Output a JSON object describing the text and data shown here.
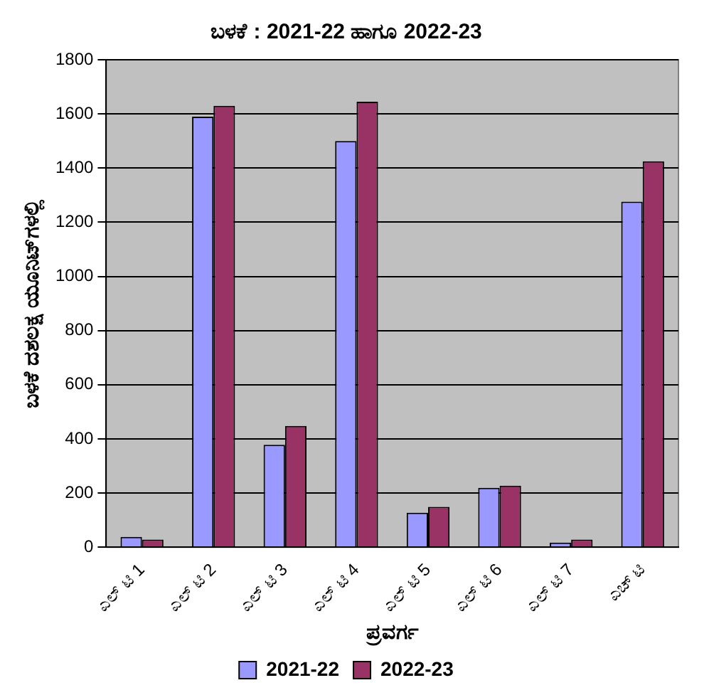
{
  "chart_data": {
    "type": "bar",
    "title": "ಬಳಕೆ : 2021-22 ಹಾಗೂ 2022-23",
    "xlabel": "ಪ್ರವರ್ಗ",
    "ylabel": "ಬಳಕೆ ದಶಲಕ್ಷ ಯೂನಿಟ್‌ಗಳಲ್ಲಿ",
    "categories": [
      "ಎಲ್ ಟಿ 1",
      "ಎಲ್ ಟಿ 2",
      "ಎಲ್ ಟಿ 3",
      "ಎಲ್ ಟಿ 4",
      "ಎಲ್ ಟಿ 5",
      "ಎಲ್ ಟಿ 6",
      "ಎಲ್ ಟಿ 7",
      "ಎಚ್ ಟಿ"
    ],
    "series": [
      {
        "name": "2021-22",
        "color": "#9999ff",
        "values": [
          38,
          1590,
          378,
          1500,
          127,
          219,
          17,
          1276
        ]
      },
      {
        "name": "2022-23",
        "color": "#993366",
        "values": [
          28,
          1630,
          448,
          1645,
          149,
          227,
          28,
          1425
        ]
      }
    ],
    "ylim": [
      0,
      1800
    ],
    "yticks": [
      0,
      200,
      400,
      600,
      800,
      1000,
      1200,
      1400,
      1600,
      1800
    ],
    "grid": "y",
    "legend": "bottom"
  }
}
